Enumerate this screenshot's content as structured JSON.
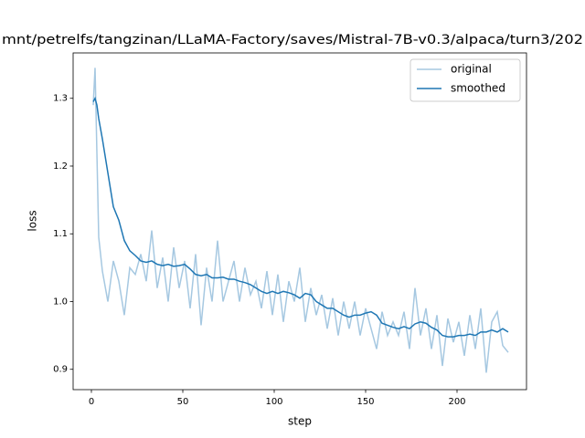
{
  "chart_data": {
    "type": "line",
    "title": "mnt/petrelfs/tangzinan/LLaMA-Factory/saves/Mistral-7B-v0.3/alpaca/turn3/202",
    "x_label": "step",
    "y_label": "loss",
    "x": [
      1,
      2,
      3,
      4,
      6,
      9,
      12,
      15,
      18,
      21,
      24,
      27,
      30,
      33,
      36,
      39,
      42,
      45,
      48,
      51,
      54,
      57,
      60,
      63,
      66,
      69,
      72,
      75,
      78,
      81,
      84,
      87,
      90,
      93,
      96,
      99,
      102,
      105,
      108,
      111,
      114,
      117,
      120,
      123,
      126,
      129,
      132,
      135,
      138,
      141,
      144,
      147,
      150,
      153,
      156,
      159,
      162,
      165,
      168,
      171,
      174,
      177,
      180,
      183,
      186,
      189,
      192,
      195,
      198,
      201,
      204,
      207,
      210,
      213,
      216,
      219,
      222,
      225,
      228
    ],
    "series": [
      {
        "name": "original",
        "color": "#a6c8e1",
        "values": [
          1.29,
          1.345,
          1.22,
          1.095,
          1.045,
          1.0,
          1.06,
          1.03,
          0.98,
          1.05,
          1.04,
          1.07,
          1.03,
          1.105,
          1.02,
          1.065,
          1.0,
          1.08,
          1.02,
          1.06,
          0.99,
          1.07,
          0.965,
          1.05,
          1.0,
          1.09,
          1.0,
          1.03,
          1.06,
          1.0,
          1.05,
          1.01,
          1.03,
          0.99,
          1.045,
          0.98,
          1.04,
          0.97,
          1.03,
          1.0,
          1.05,
          0.97,
          1.02,
          0.98,
          1.01,
          0.96,
          1.005,
          0.95,
          1.0,
          0.96,
          1.0,
          0.95,
          0.99,
          0.96,
          0.93,
          0.985,
          0.95,
          0.97,
          0.95,
          0.985,
          0.93,
          1.02,
          0.95,
          0.99,
          0.93,
          0.98,
          0.905,
          0.975,
          0.94,
          0.97,
          0.92,
          0.98,
          0.93,
          0.99,
          0.895,
          0.97,
          0.985,
          0.935,
          0.925
        ]
      },
      {
        "name": "smoothed",
        "color": "#1f77b4",
        "values": [
          1.295,
          1.3,
          1.29,
          1.27,
          1.24,
          1.19,
          1.14,
          1.12,
          1.09,
          1.075,
          1.068,
          1.06,
          1.058,
          1.06,
          1.055,
          1.053,
          1.055,
          1.052,
          1.053,
          1.055,
          1.048,
          1.04,
          1.038,
          1.04,
          1.035,
          1.035,
          1.036,
          1.033,
          1.033,
          1.03,
          1.028,
          1.025,
          1.02,
          1.015,
          1.012,
          1.015,
          1.012,
          1.015,
          1.013,
          1.01,
          1.005,
          1.012,
          1.01,
          1.0,
          0.995,
          0.99,
          0.99,
          0.985,
          0.98,
          0.977,
          0.98,
          0.98,
          0.983,
          0.985,
          0.98,
          0.968,
          0.965,
          0.962,
          0.96,
          0.963,
          0.96,
          0.967,
          0.97,
          0.968,
          0.962,
          0.958,
          0.95,
          0.948,
          0.948,
          0.95,
          0.95,
          0.952,
          0.95,
          0.955,
          0.955,
          0.958,
          0.955,
          0.96,
          0.955
        ]
      }
    ],
    "xlim": [
      -10,
      238
    ],
    "ylim": [
      0.87,
      1.367
    ],
    "xticks": [
      0,
      50,
      100,
      150,
      200
    ],
    "yticks": [
      0.9,
      {
        "value": 1.0,
        "label": "1.0"
      },
      1.1,
      1.2,
      1.3
    ],
    "legend": "upper right"
  }
}
